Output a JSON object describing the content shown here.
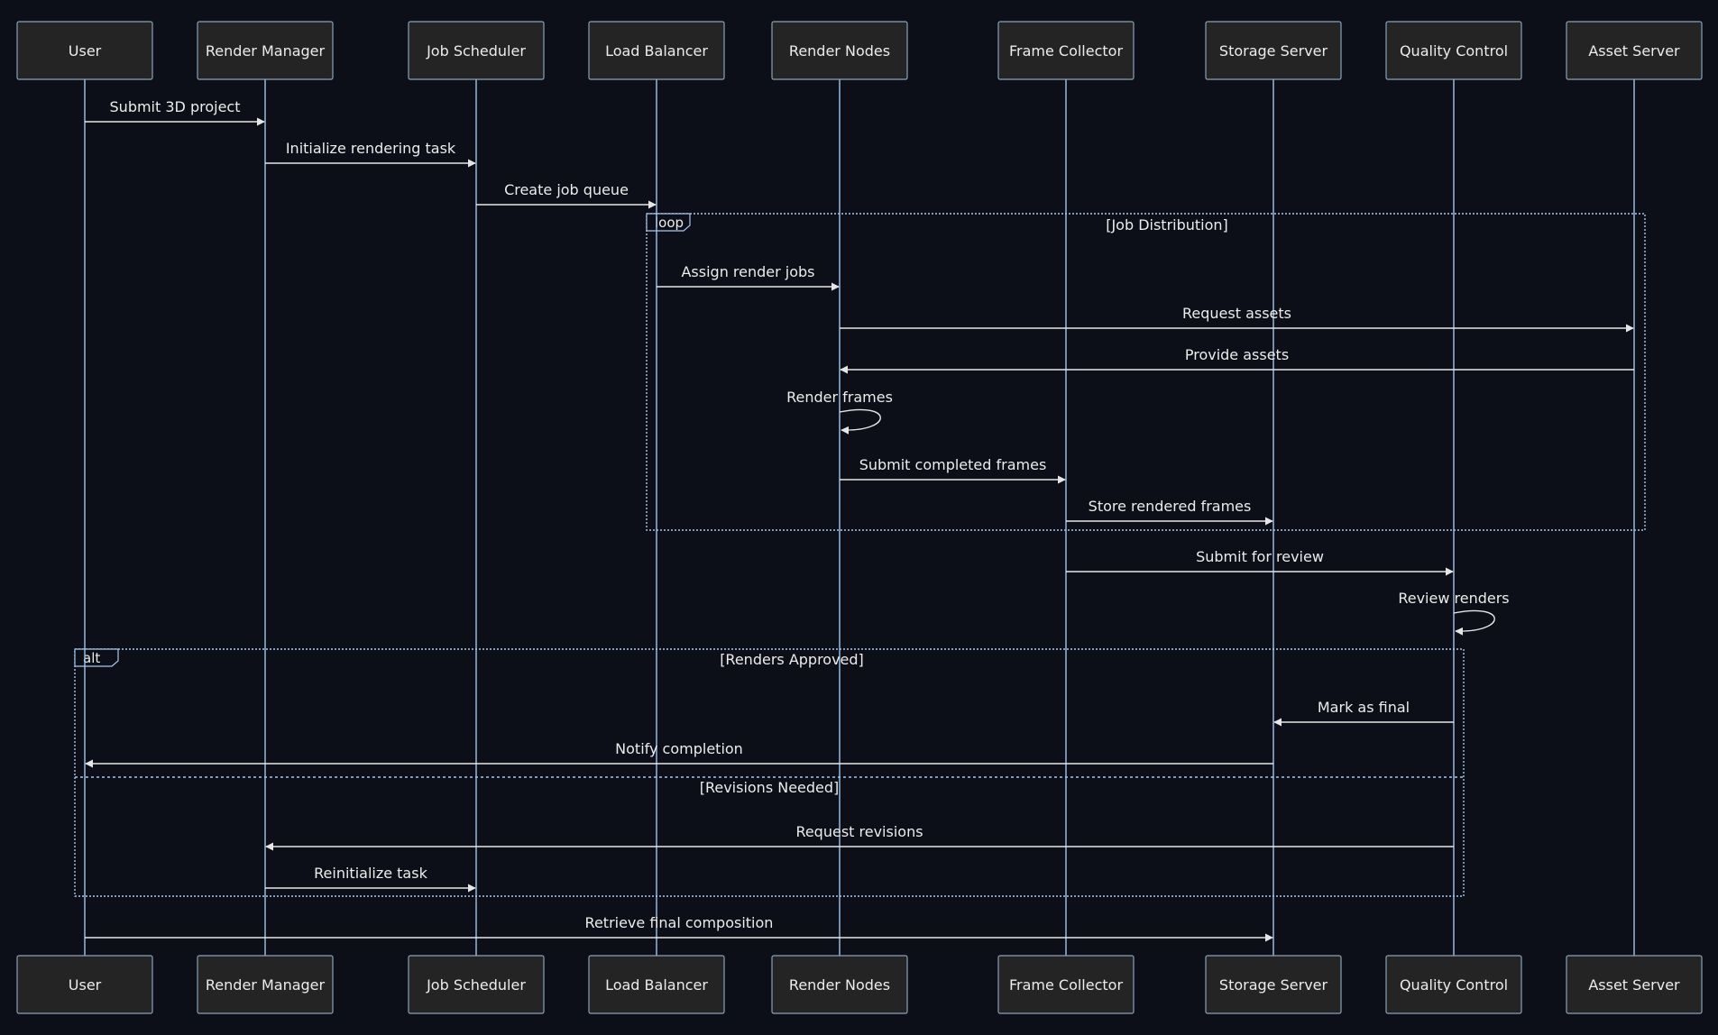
{
  "actors": [
    {
      "id": "user",
      "label": "User"
    },
    {
      "id": "rm",
      "label": "Render Manager"
    },
    {
      "id": "js",
      "label": "Job Scheduler"
    },
    {
      "id": "lb",
      "label": "Load Balancer"
    },
    {
      "id": "rn",
      "label": "Render Nodes"
    },
    {
      "id": "fc",
      "label": "Frame Collector"
    },
    {
      "id": "ss",
      "label": "Storage Server"
    },
    {
      "id": "qc",
      "label": "Quality Control"
    },
    {
      "id": "as",
      "label": "Asset Server"
    }
  ],
  "messages": [
    {
      "from": "user",
      "to": "rm",
      "label": "Submit 3D project"
    },
    {
      "from": "rm",
      "to": "js",
      "label": "Initialize rendering task"
    },
    {
      "from": "js",
      "to": "lb",
      "label": "Create job queue"
    },
    {
      "from": "lb",
      "to": "rn",
      "label": "Assign render jobs"
    },
    {
      "from": "rn",
      "to": "as",
      "label": "Request assets"
    },
    {
      "from": "as",
      "to": "rn",
      "label": "Provide assets"
    },
    {
      "from": "rn",
      "to": "rn",
      "label": "Render frames"
    },
    {
      "from": "rn",
      "to": "fc",
      "label": "Submit completed frames"
    },
    {
      "from": "fc",
      "to": "ss",
      "label": "Store rendered frames"
    },
    {
      "from": "fc",
      "to": "qc",
      "label": "Submit for review"
    },
    {
      "from": "qc",
      "to": "qc",
      "label": "Review renders"
    },
    {
      "from": "qc",
      "to": "ss",
      "label": "Mark as final"
    },
    {
      "from": "ss",
      "to": "user",
      "label": "Notify completion"
    },
    {
      "from": "qc",
      "to": "rm",
      "label": "Request revisions"
    },
    {
      "from": "rm",
      "to": "js",
      "label": "Reinitialize task"
    },
    {
      "from": "user",
      "to": "ss",
      "label": "Retrieve final composition"
    }
  ],
  "frames": [
    {
      "kind": "loop",
      "conditions": [
        "[Job Distribution]"
      ]
    },
    {
      "kind": "alt",
      "conditions": [
        "[Renders Approved]",
        "[Revisions Needed]"
      ]
    }
  ],
  "colors": {
    "background": "#0c0f17",
    "actor_fill": "#242424",
    "lifeline": "#9ec6ee",
    "message": "#e6e6e6",
    "frame": "#a7c9ef"
  }
}
